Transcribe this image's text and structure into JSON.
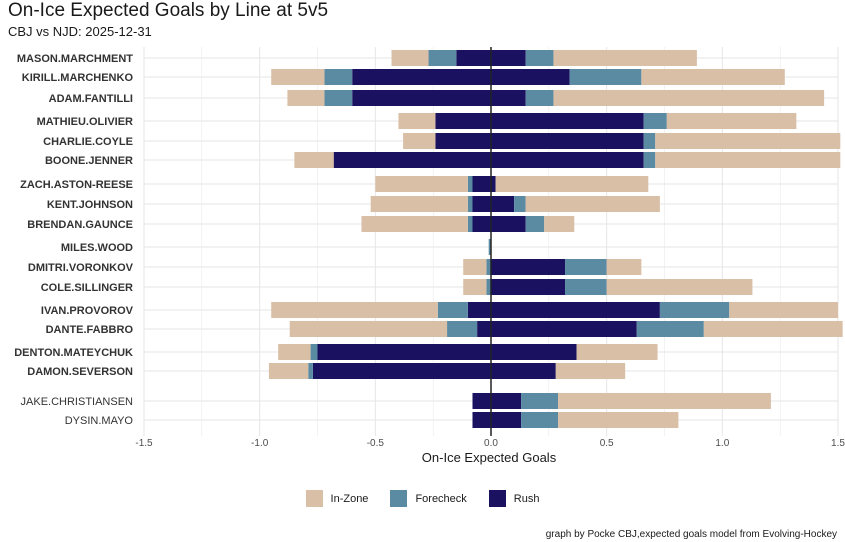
{
  "title": "On-Ice Expected Goals by Line at 5v5",
  "subtitle": "CBJ vs NJD: 2025-12-31",
  "caption": "graph by Pocke CBJ,expected goals model from Evolving-Hockey",
  "colors": {
    "In-Zone": "#d9bfa6",
    "Forecheck": "#5b8ba3",
    "Rush": "#1a1160",
    "grid": "#e6e6e6",
    "zero": "#222222"
  },
  "chart_data": {
    "type": "bar",
    "orientation": "horizontal",
    "stacked": true,
    "title": "On-Ice Expected Goals by Line at 5v5",
    "xlabel": "On-Ice Expected Goals",
    "ylabel": "",
    "xlim": [
      -1.5,
      1.5
    ],
    "xticks": [
      -1.5,
      -1.0,
      -0.5,
      0.0,
      0.5,
      1.0,
      1.5
    ],
    "xtick_labels": [
      "-1.5",
      "-1.0",
      "-0.5",
      "0.0",
      "0.5",
      "1.0",
      "1.5"
    ],
    "legend": {
      "position": "bottom",
      "entries": [
        "In-Zone",
        "Forecheck",
        "Rush"
      ]
    },
    "note": "Negative values = expected goals against, positive values = expected goals for; stacked order from zero outward: Rush, Forecheck, In-Zone",
    "players": [
      {
        "name": "MASON.MARCHMENT",
        "bold": true,
        "against": {
          "Rush": 0.15,
          "Forecheck": 0.12,
          "In-Zone": 0.16
        },
        "for": {
          "Rush": 0.15,
          "Forecheck": 0.12,
          "In-Zone": 0.62
        }
      },
      {
        "name": "KIRILL.MARCHENKO",
        "bold": true,
        "against": {
          "Rush": 0.6,
          "Forecheck": 0.12,
          "In-Zone": 0.23
        },
        "for": {
          "Rush": 0.34,
          "Forecheck": 0.31,
          "In-Zone": 0.62
        }
      },
      {
        "name": "ADAM.FANTILLI",
        "bold": true,
        "against": {
          "Rush": 0.6,
          "Forecheck": 0.12,
          "In-Zone": 0.16
        },
        "for": {
          "Rush": 0.15,
          "Forecheck": 0.12,
          "In-Zone": 1.17
        }
      },
      {
        "name": "MATHIEU.OLIVIER",
        "bold": true,
        "against": {
          "Rush": 0.24,
          "Forecheck": 0.0,
          "In-Zone": 0.16
        },
        "for": {
          "Rush": 0.66,
          "Forecheck": 0.1,
          "In-Zone": 0.56
        }
      },
      {
        "name": "CHARLIE.COYLE",
        "bold": true,
        "against": {
          "Rush": 0.24,
          "Forecheck": 0.0,
          "In-Zone": 0.14
        },
        "for": {
          "Rush": 0.66,
          "Forecheck": 0.05,
          "In-Zone": 0.8
        }
      },
      {
        "name": "BOONE.JENNER",
        "bold": true,
        "against": {
          "Rush": 0.68,
          "Forecheck": 0.0,
          "In-Zone": 0.17
        },
        "for": {
          "Rush": 0.66,
          "Forecheck": 0.05,
          "In-Zone": 0.8
        }
      },
      {
        "name": "ZACH.ASTON-REESE",
        "bold": true,
        "against": {
          "Rush": 0.08,
          "Forecheck": 0.02,
          "In-Zone": 0.4
        },
        "for": {
          "Rush": 0.02,
          "Forecheck": 0.0,
          "In-Zone": 0.66
        }
      },
      {
        "name": "KENT.JOHNSON",
        "bold": true,
        "against": {
          "Rush": 0.08,
          "Forecheck": 0.02,
          "In-Zone": 0.42
        },
        "for": {
          "Rush": 0.1,
          "Forecheck": 0.05,
          "In-Zone": 0.58
        }
      },
      {
        "name": "BRENDAN.GAUNCE",
        "bold": true,
        "against": {
          "Rush": 0.08,
          "Forecheck": 0.02,
          "In-Zone": 0.46
        },
        "for": {
          "Rush": 0.15,
          "Forecheck": 0.08,
          "In-Zone": 0.13
        }
      },
      {
        "name": "MILES.WOOD",
        "bold": true,
        "against": {
          "Rush": 0.0,
          "Forecheck": 0.01,
          "In-Zone": 0.0
        },
        "for": {
          "Rush": 0.0,
          "Forecheck": 0.0,
          "In-Zone": 0.0
        }
      },
      {
        "name": "DMITRI.VORONKOV",
        "bold": true,
        "against": {
          "Rush": 0.0,
          "Forecheck": 0.02,
          "In-Zone": 0.1
        },
        "for": {
          "Rush": 0.32,
          "Forecheck": 0.18,
          "In-Zone": 0.15
        }
      },
      {
        "name": "COLE.SILLINGER",
        "bold": true,
        "against": {
          "Rush": 0.0,
          "Forecheck": 0.02,
          "In-Zone": 0.1
        },
        "for": {
          "Rush": 0.32,
          "Forecheck": 0.18,
          "In-Zone": 0.63
        }
      },
      {
        "name": "IVAN.PROVOROV",
        "bold": true,
        "against": {
          "Rush": 0.1,
          "Forecheck": 0.13,
          "In-Zone": 0.72
        },
        "for": {
          "Rush": 0.73,
          "Forecheck": 0.3,
          "In-Zone": 0.47
        }
      },
      {
        "name": "DANTE.FABBRO",
        "bold": true,
        "against": {
          "Rush": 0.06,
          "Forecheck": 0.13,
          "In-Zone": 0.68
        },
        "for": {
          "Rush": 0.63,
          "Forecheck": 0.29,
          "In-Zone": 0.6
        }
      },
      {
        "name": "DENTON.MATEYCHUK",
        "bold": true,
        "against": {
          "Rush": 0.75,
          "Forecheck": 0.03,
          "In-Zone": 0.14
        },
        "for": {
          "Rush": 0.37,
          "Forecheck": 0.0,
          "In-Zone": 0.35
        }
      },
      {
        "name": "DAMON.SEVERSON",
        "bold": true,
        "against": {
          "Rush": 0.77,
          "Forecheck": 0.02,
          "In-Zone": 0.17
        },
        "for": {
          "Rush": 0.28,
          "Forecheck": 0.0,
          "In-Zone": 0.3
        }
      },
      {
        "name": "JAKE.CHRISTIANSEN",
        "bold": false,
        "against": {
          "Rush": 0.08,
          "Forecheck": 0.0,
          "In-Zone": 0.0
        },
        "for": {
          "Rush": 0.13,
          "Forecheck": 0.16,
          "In-Zone": 0.92
        }
      },
      {
        "name": "DYSIN.MAYO",
        "bold": false,
        "against": {
          "Rush": 0.08,
          "Forecheck": 0.0,
          "In-Zone": 0.0
        },
        "for": {
          "Rush": 0.13,
          "Forecheck": 0.16,
          "In-Zone": 0.52
        }
      }
    ]
  }
}
